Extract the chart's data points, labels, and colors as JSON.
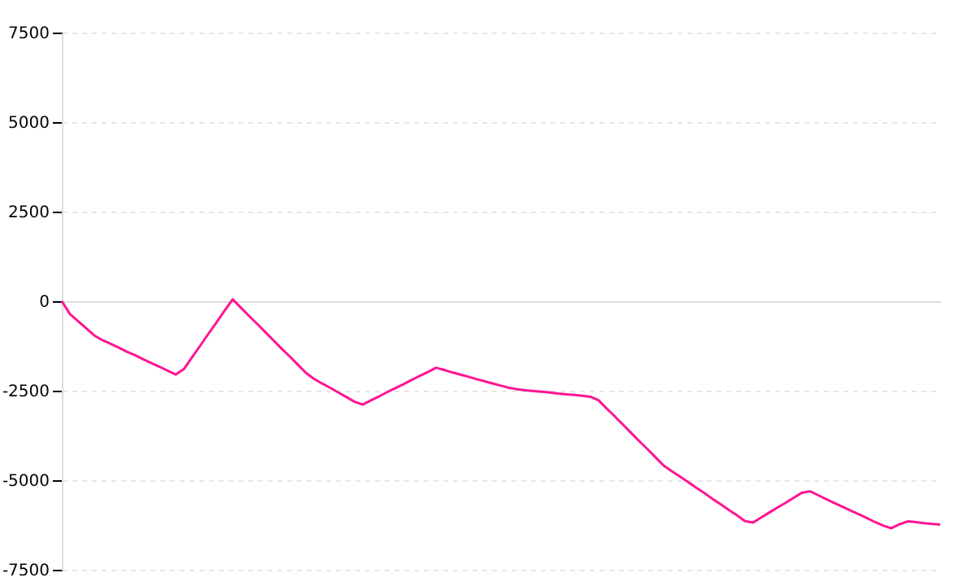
{
  "chart_data": {
    "type": "line",
    "categories": [
      null,
      null,
      null,
      null,
      null,
      null,
      null,
      null,
      null,
      null,
      null,
      null,
      null,
      null,
      null,
      null,
      null,
      null,
      null,
      null,
      null,
      null,
      null,
      null,
      null,
      null,
      null,
      null,
      null,
      null,
      null,
      null,
      null,
      null,
      null,
      null,
      null,
      null,
      null,
      null,
      null,
      null,
      null,
      null,
      null,
      null,
      null,
      null,
      null,
      null,
      null,
      null,
      null,
      null,
      null,
      null,
      null,
      null,
      null,
      null,
      null,
      null,
      null,
      null,
      null,
      null,
      null,
      null,
      null,
      null,
      null,
      null,
      null,
      null,
      null,
      null,
      null,
      null,
      null,
      null,
      null,
      null,
      null,
      null,
      null,
      null,
      null,
      null,
      null,
      null,
      null,
      null,
      null,
      null,
      null,
      null,
      null,
      null,
      null,
      null,
      null,
      null,
      null,
      null,
      null,
      null,
      null,
      null,
      null
    ],
    "series": [
      {
        "color": "#ff1493",
        "values": [
          0,
          -360,
          -560,
          -760,
          -960,
          -1090,
          -1190,
          -1300,
          -1410,
          -1510,
          -1620,
          -1730,
          -1830,
          -1940,
          -2050,
          -1900,
          -1570,
          -1250,
          -920,
          -600,
          -270,
          50,
          -180,
          -410,
          -630,
          -860,
          -1090,
          -1320,
          -1540,
          -1770,
          -2000,
          -2170,
          -2300,
          -2420,
          -2550,
          -2680,
          -2810,
          -2890,
          -2770,
          -2660,
          -2540,
          -2430,
          -2320,
          -2200,
          -2090,
          -1980,
          -1860,
          -1920,
          -1990,
          -2050,
          -2110,
          -2180,
          -2240,
          -2300,
          -2360,
          -2420,
          -2460,
          -2490,
          -2510,
          -2530,
          -2550,
          -2580,
          -2600,
          -2620,
          -2640,
          -2670,
          -2770,
          -3000,
          -3220,
          -3450,
          -3680,
          -3910,
          -4130,
          -4360,
          -4590,
          -4750,
          -4900,
          -5050,
          -5210,
          -5360,
          -5520,
          -5670,
          -5830,
          -5980,
          -6140,
          -6180,
          -6040,
          -5900,
          -5760,
          -5630,
          -5490,
          -5350,
          -5310,
          -5420,
          -5530,
          -5640,
          -5740,
          -5850,
          -5950,
          -6060,
          -6170,
          -6270,
          -6340,
          -6230,
          -6150,
          -6170,
          -6200,
          -6220,
          -6240
        ]
      }
    ],
    "ylim": [
      -7500,
      7500
    ],
    "yticks": [
      -7500,
      -5000,
      -2500,
      0,
      2500,
      5000,
      7500
    ],
    "grid": "y",
    "tick_labels": "y",
    "marker": "none",
    "line_style": "solid"
  }
}
